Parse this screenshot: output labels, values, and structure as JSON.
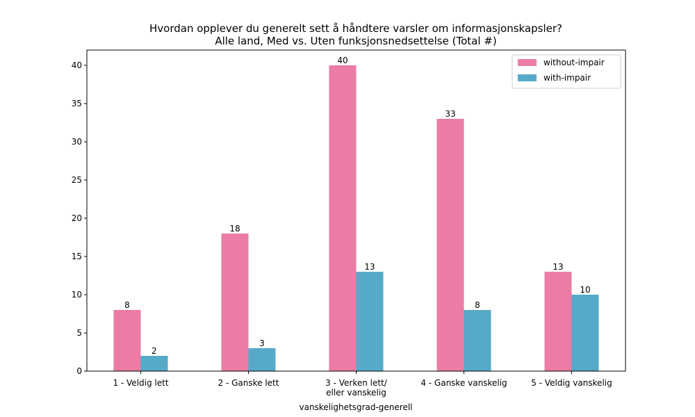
{
  "chart_data": {
    "type": "bar",
    "title_lines": [
      "Hvordan opplever du generelt sett å håndtere varsler om informasjonskapsler?",
      "Alle land, Med vs. Uten funksjonsnedsettelse (Total #)"
    ],
    "xlabel": "vanskelighetsgrad-generell",
    "ylabel": "",
    "categories": [
      [
        "1 - Veldig lett"
      ],
      [
        "2 - Ganske lett"
      ],
      [
        "3 - Verken lett/",
        "eller vanskelig"
      ],
      [
        "4 - Ganske vanskelig"
      ],
      [
        "5 - Veldig vanskelig"
      ]
    ],
    "series": [
      {
        "name": "without-impair",
        "color": "#ec7ba6",
        "values": [
          8,
          18,
          40,
          33,
          13
        ]
      },
      {
        "name": "with-impair",
        "color": "#56aac8",
        "values": [
          2,
          3,
          13,
          8,
          10
        ]
      }
    ],
    "ylim": [
      0,
      42
    ],
    "yticks": [
      0,
      5,
      10,
      15,
      20,
      25,
      30,
      35,
      40
    ],
    "legend_position": "top-right",
    "grid": false
  }
}
